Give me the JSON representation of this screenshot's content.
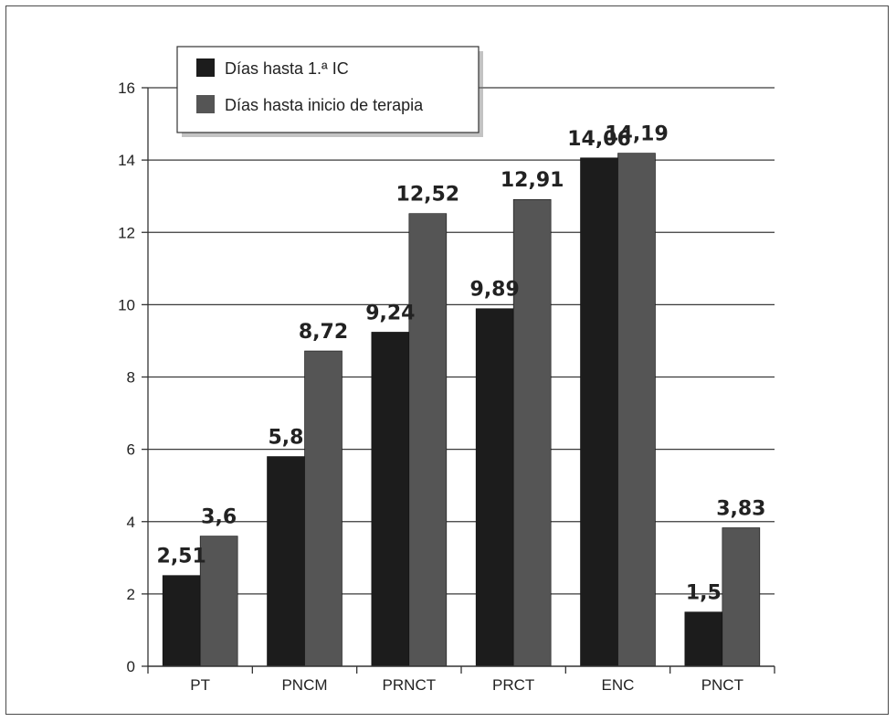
{
  "chart_data": {
    "type": "bar",
    "categories": [
      "PT",
      "PNCM",
      "PRNCT",
      "PRCT",
      "ENC",
      "PNCT"
    ],
    "series": [
      {
        "name": "Días hasta 1.ª IC",
        "values": [
          2.51,
          5.8,
          9.24,
          9.89,
          14.06,
          1.5
        ],
        "labels": [
          "2,51",
          "5,8",
          "9,24",
          "9,89",
          "14,06",
          "1,5"
        ],
        "color": "#1c1c1c"
      },
      {
        "name": "Días hasta inicio de terapia",
        "values": [
          3.6,
          8.72,
          12.52,
          12.91,
          14.19,
          3.83
        ],
        "labels": [
          "3,6",
          "8,72",
          "12,52",
          "12,91",
          "14,19",
          "3,83"
        ],
        "color": "#555555"
      }
    ],
    "ylim": [
      0,
      16
    ],
    "yticks": [
      0,
      2,
      4,
      6,
      8,
      10,
      12,
      14,
      16
    ],
    "grid": true,
    "legend_position": "top-left"
  }
}
